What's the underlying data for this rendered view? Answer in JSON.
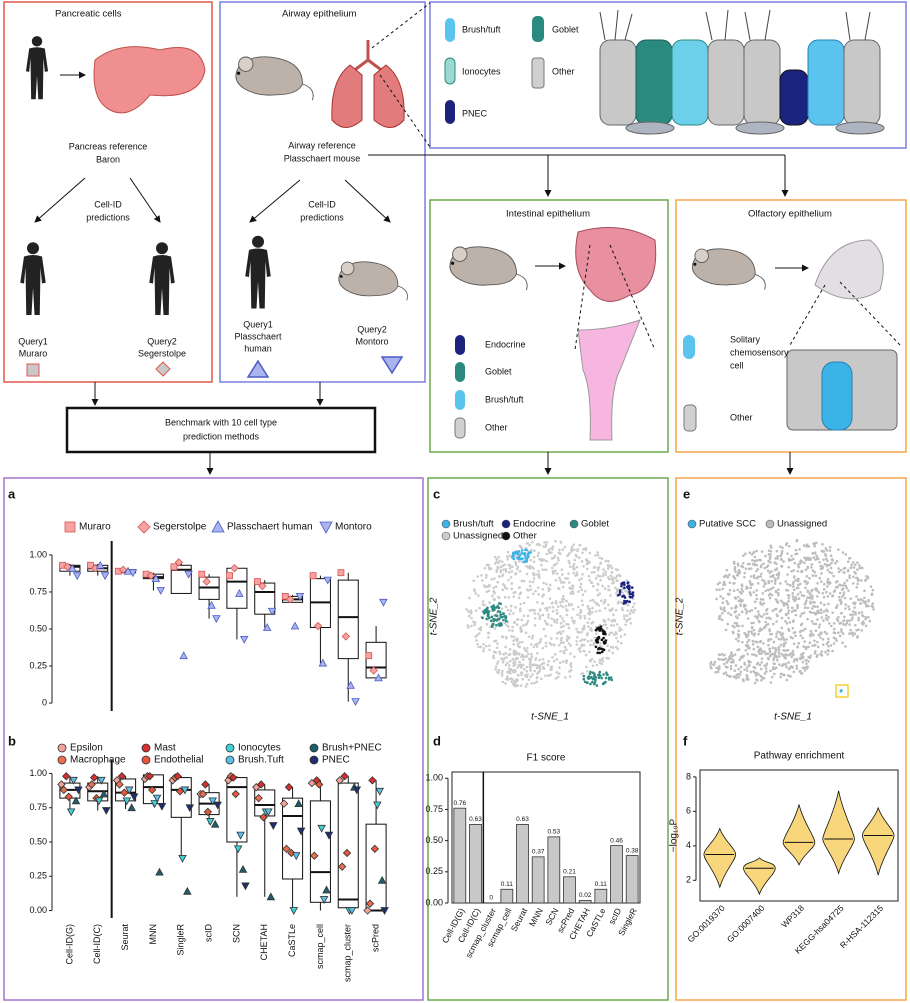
{
  "diagram": {
    "pancreas": {
      "title": "Pancreatic cells",
      "reference": [
        "Pancreas reference",
        "Baron"
      ],
      "predictions": [
        "Cell-ID",
        "predictions"
      ],
      "query1": [
        "Query1",
        "Muraro"
      ],
      "query2": [
        "Query2",
        "Segerstolpe"
      ]
    },
    "airway": {
      "title": "Airway epithelium",
      "reference": [
        "Airway reference",
        "Plasschaert mouse"
      ],
      "predictions": [
        "Cell-ID",
        "predictions"
      ],
      "query1": [
        "Query1",
        "Plasschaert",
        "human"
      ],
      "query2": [
        "Query2",
        "Montoro"
      ],
      "cell_types": [
        "Brush/tuft",
        "Goblet",
        "Ionocytes",
        "Other",
        "PNEC"
      ]
    },
    "intestinal": {
      "title": "Intestinal epithelium",
      "cell_types": [
        "Endocrine",
        "Goblet",
        "Brush/tuft",
        "Other"
      ]
    },
    "olfactory": {
      "title": "Olfactory epithelium",
      "cell_types": [
        [
          "Solitary",
          "chemosensory",
          "cell"
        ],
        [
          "Other"
        ]
      ]
    },
    "benchmark": [
      "Benchmark with 10 cell type",
      "prediction methods"
    ]
  },
  "chart_data": [
    {
      "label": "a",
      "type": "box",
      "ylim": [
        -0.04,
        1.04
      ],
      "yticks": [
        0,
        0.25,
        {
          "value": 0.5,
          "label": "0.50"
        },
        0.75,
        {
          "value": 1,
          "label": "1.00"
        }
      ],
      "series": [
        {
          "name": "Muraro",
          "color": "#f5a3a3",
          "marker": "square",
          "values": [
            0.93,
            0.93,
            0.89,
            0.87,
            0.92,
            0.87,
            0.86,
            0.82,
            0.72,
            0.86,
            0.88,
            0.32
          ]
        },
        {
          "name": "Segerstolpe",
          "color": "#f5a3a3",
          "marker": "diamond",
          "values": [
            0.92,
            0.91,
            0.9,
            0.86,
            0.95,
            0.82,
            0.91,
            0.79,
            0.7,
            0.52,
            0.45,
            0.22
          ]
        },
        {
          "name": "Plasschaert human",
          "color": "#aab4ee",
          "marker": "triangle-up",
          "values": [
            0.91,
            0.93,
            0.89,
            0.84,
            0.32,
            0.66,
            0.74,
            0.51,
            0.52,
            0.27,
            0.12,
            0.17
          ]
        },
        {
          "name": "Montoro",
          "color": "#aab4ee",
          "marker": "triangle-down",
          "values": [
            0.86,
            0.86,
            0.88,
            0.76,
            0.87,
            0.57,
            0.43,
            0.62,
            0.72,
            0.83,
            0.01,
            0.68
          ]
        }
      ],
      "boxes": [
        {
          "low": 0.86,
          "q1": 0.89,
          "median": 0.92,
          "q3": 0.93,
          "high": 0.94
        },
        {
          "low": 0.86,
          "q1": 0.89,
          "median": 0.91,
          "q3": 0.93,
          "high": 0.94
        },
        {
          "low": 0.87,
          "q1": 0.88,
          "median": 0.89,
          "q3": 0.9,
          "high": 0.91
        },
        {
          "low": 0.76,
          "q1": 0.84,
          "median": 0.85,
          "q3": 0.87,
          "high": 0.88
        },
        {
          "low": 0.74,
          "q1": 0.74,
          "median": 0.9,
          "q3": 0.93,
          "high": 0.95
        },
        {
          "low": 0.57,
          "q1": 0.7,
          "median": 0.78,
          "q3": 0.85,
          "high": 0.87
        },
        {
          "low": 0.43,
          "q1": 0.64,
          "median": 0.82,
          "q3": 0.91,
          "high": 0.92
        },
        {
          "low": 0.51,
          "q1": 0.6,
          "median": 0.75,
          "q3": 0.81,
          "high": 0.83
        },
        {
          "low": 0.68,
          "q1": 0.68,
          "median": 0.7,
          "q3": 0.72,
          "high": 0.73
        },
        {
          "low": 0.27,
          "q1": 0.51,
          "median": 0.68,
          "q3": 0.84,
          "high": 0.86
        },
        {
          "low": 0.01,
          "q1": 0.3,
          "median": 0.58,
          "q3": 0.83,
          "high": 0.88
        },
        {
          "low": 0.17,
          "q1": 0.17,
          "median": 0.24,
          "q3": 0.41,
          "high": 0.52
        }
      ]
    },
    {
      "label": "b",
      "type": "box",
      "ylim": [
        -0.04,
        1.04
      ],
      "yticks": [
        {
          "value": 0,
          "label": "0.00"
        },
        0.25,
        {
          "value": 0.5,
          "label": "0.50"
        },
        0.75,
        {
          "value": 1,
          "label": "1.00"
        }
      ],
      "categories": [
        "Cell-ID(G)",
        "Cell-ID(C)",
        "Seurat",
        "MNN",
        "SingleR",
        "scID",
        "SCN",
        "CHETAH",
        "CaSTLe",
        "scmap_cell",
        "scmap_cluster",
        "scPred"
      ],
      "series": [
        {
          "name": "Epsilon",
          "color": "#f4a39a",
          "marker": "diamond",
          "values": [
            0.92,
            0.9,
            0.95,
            0.96,
            0.95,
            0.85,
            0.95,
            0.9,
            0.78,
            0.93,
            0.95,
            0
          ]
        },
        {
          "name": "Macrophage",
          "color": "#ec6f4f",
          "marker": "diamond",
          "values": [
            0.88,
            0.92,
            0.92,
            0.98,
            0.97,
            0.85,
            0.98,
            0.82,
            0.45,
            0.4,
            0.32,
            0.05
          ]
        },
        {
          "name": "Mast",
          "color": "#d62f2f",
          "marker": "diamond",
          "values": [
            0.98,
            0.97,
            0.98,
            0.98,
            0.98,
            0.92,
            0.97,
            0.92,
            0.9,
            0.95,
            0.98,
            0.95
          ]
        },
        {
          "name": "Endothelial",
          "color": "#e8573a",
          "marker": "diamond",
          "values": [
            0.83,
            0.82,
            0.86,
            0.88,
            0.87,
            0.72,
            0.85,
            0.68,
            0.42,
            0.92,
            0.42,
            0.45
          ]
        },
        {
          "name": "Ionocytes",
          "color": "#3fd0d8",
          "marker": "triangle-down",
          "values": [
            0.72,
            0.8,
            0.8,
            0.78,
            0.38,
            0.65,
            0.45,
            0.72,
            0,
            0.6,
            0,
            0.77
          ]
        },
        {
          "name": "Brush.Tuft",
          "color": "#5bbfe8",
          "marker": "triangle-down",
          "values": [
            0.95,
            0.95,
            0.88,
            0.82,
            0.88,
            0.8,
            0.55,
            0.72,
            0.4,
            0.08,
            0,
            0.87
          ]
        },
        {
          "name": "Brush+PNEC",
          "color": "#1d5e6e",
          "marker": "triangle-up",
          "values": [
            0.8,
            0.85,
            0.75,
            0.28,
            0.14,
            0.63,
            0.3,
            0.1,
            0.78,
            0.15,
            0.9,
            0.22
          ]
        },
        {
          "name": "PNEC",
          "color": "#1f2d6e",
          "marker": "triangle-down",
          "values": [
            0.88,
            0.73,
            0.83,
            0.76,
            0.75,
            0.77,
            0.18,
            0.62,
            0.58,
            0.55,
            0.88,
            0
          ]
        }
      ],
      "boxes": [
        {
          "low": 0.72,
          "q1": 0.82,
          "median": 0.88,
          "q3": 0.93,
          "high": 0.98
        },
        {
          "low": 0.73,
          "q1": 0.8,
          "median": 0.87,
          "q3": 0.93,
          "high": 0.98
        },
        {
          "low": 0.74,
          "q1": 0.8,
          "median": 0.86,
          "q3": 0.96,
          "high": 0.98
        },
        {
          "low": 0.76,
          "q1": 0.78,
          "median": 0.9,
          "q3": 0.99,
          "high": 0.99
        },
        {
          "low": 0.38,
          "q1": 0.68,
          "median": 0.88,
          "q3": 0.97,
          "high": 0.98
        },
        {
          "low": 0.63,
          "q1": 0.7,
          "median": 0.78,
          "q3": 0.86,
          "high": 0.92
        },
        {
          "low": 0.1,
          "q1": 0.5,
          "median": 0.9,
          "q3": 0.97,
          "high": 0.98
        },
        {
          "low": 0.1,
          "q1": 0.69,
          "median": 0.77,
          "q3": 0.88,
          "high": 0.92
        },
        {
          "low": 0,
          "q1": 0.23,
          "median": 0.69,
          "q3": 0.82,
          "high": 0.9
        },
        {
          "low": 0,
          "q1": 0.06,
          "median": 0.28,
          "q3": 0.8,
          "high": 0.95
        },
        {
          "low": 0,
          "q1": 0.02,
          "median": 0.08,
          "q3": 0.93,
          "high": 0.98
        },
        {
          "low": 0,
          "q1": 0,
          "median": 0,
          "q3": 0.63,
          "high": 0.95
        }
      ]
    },
    {
      "label": "c",
      "type": "scatter",
      "xlabel": "t-SNE_1",
      "ylabel": "t-SNE_2",
      "series": [
        {
          "name": "Brush/tuft",
          "color": "#3bb3e6"
        },
        {
          "name": "Endocrine",
          "color": "#1a237e"
        },
        {
          "name": "Goblet",
          "color": "#2a8a80"
        },
        {
          "name": "Unassigned",
          "color": "#cccccc"
        },
        {
          "name": "Other",
          "color": "#111111"
        }
      ]
    },
    {
      "label": "d",
      "type": "bar",
      "title": "F1 score",
      "color": "#c8c8c8",
      "categories": [
        "Cell-ID(G)",
        "Cell-ID(C)",
        "scmap_cluster",
        "scmap_cell",
        "Seurat",
        "MNN",
        "SCN",
        "scPred",
        "CHETAH",
        "CaSTLe",
        "scID",
        "SingleR"
      ],
      "values": [
        0.76,
        0.63,
        0,
        0.11,
        0.63,
        0.37,
        0.53,
        0.21,
        0.02,
        0.11,
        0.46,
        0.38
      ],
      "ylim": [
        0,
        1.05
      ],
      "yticks": [
        {
          "value": 0,
          "label": "0.00"
        },
        0.25,
        {
          "value": 0.5,
          "label": "0.50"
        },
        0.75,
        {
          "value": 1,
          "label": "1.00"
        }
      ]
    },
    {
      "label": "e",
      "type": "scatter",
      "xlabel": "t-SNE_1",
      "ylabel": "t-SNE_2",
      "series": [
        {
          "name": "Putative SCC",
          "color": "#3bb3e6"
        },
        {
          "name": "Unassigned",
          "color": "#bdbdbd"
        }
      ]
    },
    {
      "label": "f",
      "type": "violin",
      "title": "Pathway enrichment",
      "ylabel": "−log₁₀P",
      "color": "#f7d67c",
      "categories": [
        "GO:0019370",
        "GO:0007400",
        "WP318",
        "KEGG-hsa04725",
        "R-HSA-112315"
      ],
      "min": [
        1.6,
        1.2,
        2.9,
        2.4,
        2.3
      ],
      "median": [
        3.5,
        2.7,
        4.2,
        4.4,
        4.6
      ],
      "max": [
        5.0,
        3.3,
        6.4,
        7.2,
        6.2
      ],
      "ylim": [
        0.8,
        8.4
      ],
      "yticks": [
        2,
        4,
        6,
        8
      ]
    }
  ]
}
